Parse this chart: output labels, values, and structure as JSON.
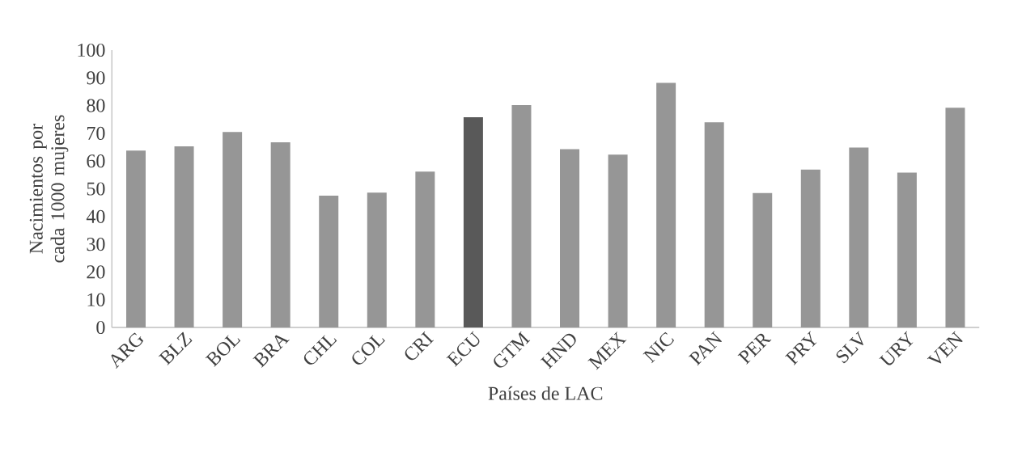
{
  "chart_data": {
    "type": "bar",
    "xlabel": "Países de LAC",
    "ylabel": "Nacimientos por cada 1000 mujeres",
    "categories": [
      "ARG",
      "BLZ",
      "BOL",
      "BRA",
      "CHL",
      "COL",
      "CRI",
      "ECU",
      "GTM",
      "HND",
      "MEX",
      "NIC",
      "PAN",
      "PER",
      "PRY",
      "SLV",
      "URY",
      "VEN"
    ],
    "values": [
      63.8,
      65.3,
      70.5,
      66.8,
      47.5,
      48.6,
      56.2,
      75.8,
      80.2,
      64.3,
      62.3,
      88.2,
      74.0,
      48.5,
      56.9,
      64.9,
      55.8,
      79.2
    ],
    "colors": [
      "#969696",
      "#969696",
      "#969696",
      "#969696",
      "#969696",
      "#969696",
      "#969696",
      "#595959",
      "#969696",
      "#969696",
      "#969696",
      "#969696",
      "#969696",
      "#969696",
      "#969696",
      "#969696",
      "#969696",
      "#969696"
    ],
    "ylim": [
      0,
      100
    ],
    "yticks": [
      0,
      10,
      20,
      30,
      40,
      50,
      60,
      70,
      80,
      90,
      100
    ],
    "grid": false
  }
}
